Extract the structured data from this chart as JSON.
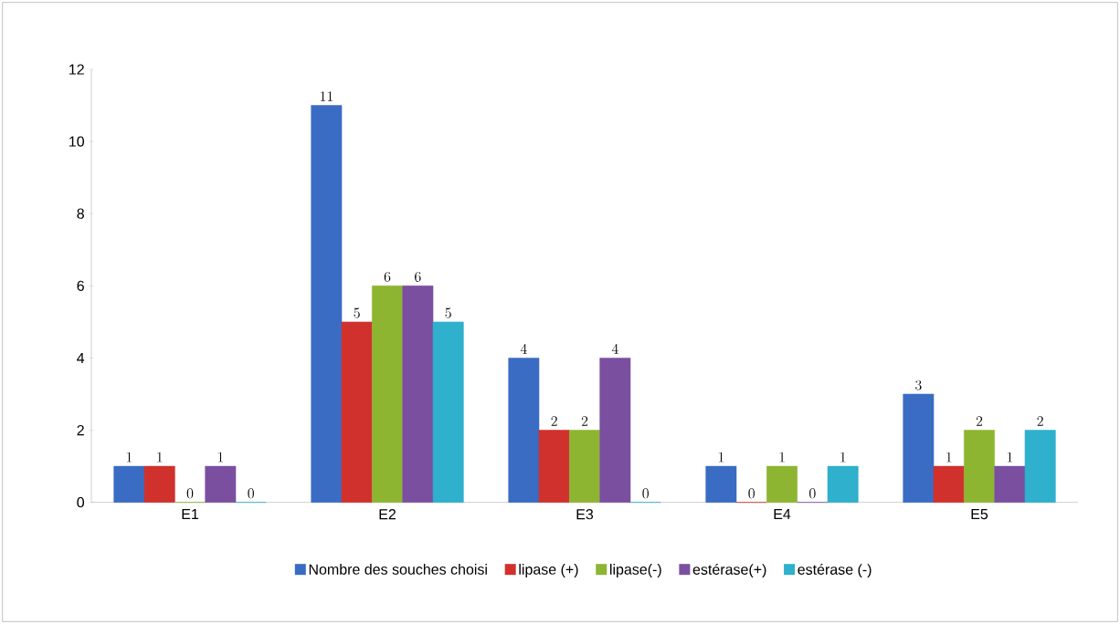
{
  "chart_data": {
    "type": "bar",
    "categories": [
      "E1",
      "E2",
      "E3",
      "E4",
      "E5"
    ],
    "series": [
      {
        "name": "Nombre des souches choisi",
        "color": "#3a6cc4",
        "values": [
          1,
          11,
          4,
          1,
          3
        ]
      },
      {
        "name": "lipase (+)",
        "color": "#d0312d",
        "values": [
          1,
          5,
          2,
          0,
          1
        ]
      },
      {
        "name": "lipase(-)",
        "color": "#8db531",
        "values": [
          0,
          6,
          2,
          1,
          2
        ]
      },
      {
        "name": "estérase(+)",
        "color": "#7a4fa0",
        "values": [
          1,
          6,
          4,
          0,
          1
        ]
      },
      {
        "name": "estérase (-)",
        "color": "#2fb0cc",
        "values": [
          0,
          5,
          0,
          1,
          2
        ]
      }
    ],
    "ylim": [
      0,
      12
    ],
    "yticks": [
      0,
      2,
      4,
      6,
      8,
      10,
      12
    ],
    "data_labels": true,
    "legend": "bottom"
  }
}
